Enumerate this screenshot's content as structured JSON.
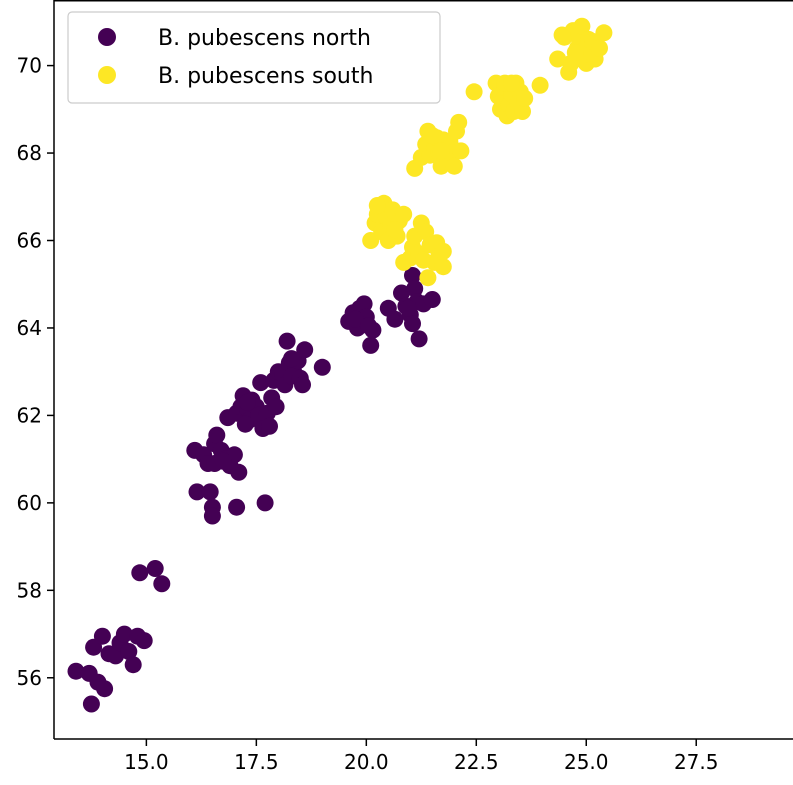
{
  "chart_data": {
    "type": "scatter",
    "title": "",
    "xlabel": "",
    "ylabel": "",
    "xlim": [
      12.9,
      29.7
    ],
    "ylim": [
      54.6,
      71.5
    ],
    "xticks": [
      15.0,
      17.5,
      20.0,
      22.5,
      25.0,
      27.5
    ],
    "xtick_labels": [
      "15.0",
      "17.5",
      "20.0",
      "22.5",
      "25.0",
      "27.5"
    ],
    "yticks": [
      56,
      58,
      60,
      62,
      64,
      66,
      68,
      70
    ],
    "ytick_labels": [
      "56",
      "58",
      "60",
      "62",
      "64",
      "66",
      "68",
      "70"
    ],
    "grid": false,
    "legend_position": "top-left",
    "series": [
      {
        "name": "B. pubescens north",
        "color": "#440154",
        "points": [
          [
            13.4,
            56.15
          ],
          [
            13.7,
            56.1
          ],
          [
            13.9,
            55.9
          ],
          [
            14.05,
            55.75
          ],
          [
            13.75,
            55.4
          ],
          [
            13.8,
            56.7
          ],
          [
            14.0,
            56.95
          ],
          [
            14.15,
            56.55
          ],
          [
            14.3,
            56.5
          ],
          [
            14.4,
            56.8
          ],
          [
            14.5,
            57.0
          ],
          [
            14.6,
            56.6
          ],
          [
            14.7,
            56.3
          ],
          [
            14.8,
            56.95
          ],
          [
            14.95,
            56.85
          ],
          [
            14.85,
            58.4
          ],
          [
            15.2,
            58.5
          ],
          [
            15.35,
            58.15
          ],
          [
            16.15,
            60.25
          ],
          [
            16.45,
            60.25
          ],
          [
            16.5,
            59.9
          ],
          [
            16.5,
            59.7
          ],
          [
            17.05,
            59.9
          ],
          [
            17.7,
            60.0
          ],
          [
            16.1,
            61.2
          ],
          [
            16.3,
            61.1
          ],
          [
            16.4,
            60.9
          ],
          [
            16.55,
            61.35
          ],
          [
            16.6,
            61.55
          ],
          [
            16.7,
            61.2
          ],
          [
            16.8,
            61.0
          ],
          [
            16.9,
            60.85
          ],
          [
            17.0,
            61.1
          ],
          [
            17.1,
            60.7
          ],
          [
            16.55,
            60.9
          ],
          [
            16.75,
            60.95
          ],
          [
            16.85,
            61.95
          ],
          [
            17.05,
            62.05
          ],
          [
            17.15,
            62.2
          ],
          [
            17.2,
            62.45
          ],
          [
            17.3,
            62.15
          ],
          [
            17.35,
            61.9
          ],
          [
            17.4,
            62.35
          ],
          [
            17.5,
            62.2
          ],
          [
            17.55,
            62.0
          ],
          [
            17.65,
            61.7
          ],
          [
            17.75,
            62.05
          ],
          [
            17.8,
            61.75
          ],
          [
            17.85,
            62.4
          ],
          [
            17.95,
            62.2
          ],
          [
            17.6,
            62.75
          ],
          [
            17.3,
            62.3
          ],
          [
            17.25,
            61.8
          ],
          [
            17.9,
            62.8
          ],
          [
            18.0,
            63.0
          ],
          [
            18.1,
            62.95
          ],
          [
            18.15,
            62.7
          ],
          [
            18.25,
            63.2
          ],
          [
            18.35,
            63.0
          ],
          [
            18.2,
            63.7
          ],
          [
            18.3,
            62.9
          ],
          [
            18.45,
            63.25
          ],
          [
            18.5,
            62.85
          ],
          [
            18.55,
            62.7
          ],
          [
            18.6,
            63.5
          ],
          [
            18.3,
            63.3
          ],
          [
            19.0,
            63.1
          ],
          [
            19.6,
            64.15
          ],
          [
            19.7,
            64.35
          ],
          [
            19.8,
            64.0
          ],
          [
            19.85,
            64.45
          ],
          [
            19.95,
            64.55
          ],
          [
            20.0,
            64.25
          ],
          [
            20.1,
            63.6
          ],
          [
            20.15,
            63.95
          ],
          [
            19.75,
            64.2
          ],
          [
            20.05,
            64.05
          ],
          [
            20.5,
            64.45
          ],
          [
            20.65,
            64.2
          ],
          [
            20.8,
            64.8
          ],
          [
            20.9,
            64.5
          ],
          [
            21.0,
            64.3
          ],
          [
            21.05,
            64.1
          ],
          [
            21.05,
            65.2
          ],
          [
            21.1,
            64.9
          ],
          [
            21.15,
            64.6
          ],
          [
            21.2,
            63.75
          ],
          [
            21.3,
            64.55
          ],
          [
            21.5,
            64.65
          ],
          [
            20.95,
            64.45
          ]
        ]
      },
      {
        "name": "B. pubescens south",
        "color": "#fde725",
        "points": [
          [
            20.1,
            66.0
          ],
          [
            20.2,
            66.4
          ],
          [
            20.25,
            66.6
          ],
          [
            20.35,
            66.2
          ],
          [
            20.4,
            66.85
          ],
          [
            20.45,
            66.55
          ],
          [
            20.5,
            66.0
          ],
          [
            20.55,
            66.35
          ],
          [
            20.6,
            66.7
          ],
          [
            20.7,
            66.1
          ],
          [
            20.75,
            66.45
          ],
          [
            20.85,
            66.6
          ],
          [
            20.25,
            66.8
          ],
          [
            20.65,
            66.25
          ],
          [
            20.85,
            65.5
          ],
          [
            21.0,
            65.6
          ],
          [
            21.05,
            65.85
          ],
          [
            21.1,
            66.1
          ],
          [
            21.2,
            65.7
          ],
          [
            21.25,
            66.4
          ],
          [
            21.3,
            65.55
          ],
          [
            21.35,
            66.2
          ],
          [
            21.4,
            65.15
          ],
          [
            21.45,
            65.9
          ],
          [
            21.55,
            65.5
          ],
          [
            21.6,
            65.95
          ],
          [
            21.65,
            65.65
          ],
          [
            21.75,
            65.4
          ],
          [
            21.75,
            65.75
          ],
          [
            21.1,
            67.65
          ],
          [
            21.25,
            67.9
          ],
          [
            21.35,
            68.2
          ],
          [
            21.4,
            68.5
          ],
          [
            21.45,
            67.95
          ],
          [
            21.55,
            68.1
          ],
          [
            21.6,
            68.35
          ],
          [
            21.65,
            68.0
          ],
          [
            21.7,
            67.7
          ],
          [
            21.75,
            68.3
          ],
          [
            21.8,
            68.15
          ],
          [
            21.85,
            67.8
          ],
          [
            21.9,
            68.25
          ],
          [
            21.95,
            68.0
          ],
          [
            22.0,
            67.7
          ],
          [
            22.05,
            68.5
          ],
          [
            22.1,
            68.7
          ],
          [
            22.15,
            68.05
          ],
          [
            21.5,
            68.4
          ],
          [
            21.7,
            68.05
          ],
          [
            22.45,
            69.4
          ],
          [
            22.95,
            69.6
          ],
          [
            23.0,
            69.3
          ],
          [
            23.05,
            69.0
          ],
          [
            23.1,
            69.2
          ],
          [
            23.15,
            69.5
          ],
          [
            23.2,
            68.85
          ],
          [
            23.25,
            69.1
          ],
          [
            23.3,
            69.35
          ],
          [
            23.35,
            68.95
          ],
          [
            23.4,
            69.6
          ],
          [
            23.45,
            69.15
          ],
          [
            23.5,
            69.4
          ],
          [
            23.55,
            68.95
          ],
          [
            23.6,
            69.25
          ],
          [
            23.15,
            69.6
          ],
          [
            23.3,
            69.6
          ],
          [
            23.95,
            69.55
          ],
          [
            24.35,
            70.15
          ],
          [
            24.5,
            70.65
          ],
          [
            24.6,
            69.85
          ],
          [
            24.65,
            70.05
          ],
          [
            24.7,
            70.8
          ],
          [
            24.8,
            70.4
          ],
          [
            24.85,
            70.6
          ],
          [
            24.9,
            70.9
          ],
          [
            24.95,
            70.35
          ],
          [
            25.0,
            70.05
          ],
          [
            25.05,
            70.6
          ],
          [
            25.1,
            70.25
          ],
          [
            25.15,
            70.55
          ],
          [
            25.2,
            70.15
          ],
          [
            25.3,
            70.4
          ],
          [
            25.4,
            70.75
          ],
          [
            24.45,
            70.7
          ],
          [
            24.75,
            70.3
          ]
        ]
      }
    ]
  }
}
